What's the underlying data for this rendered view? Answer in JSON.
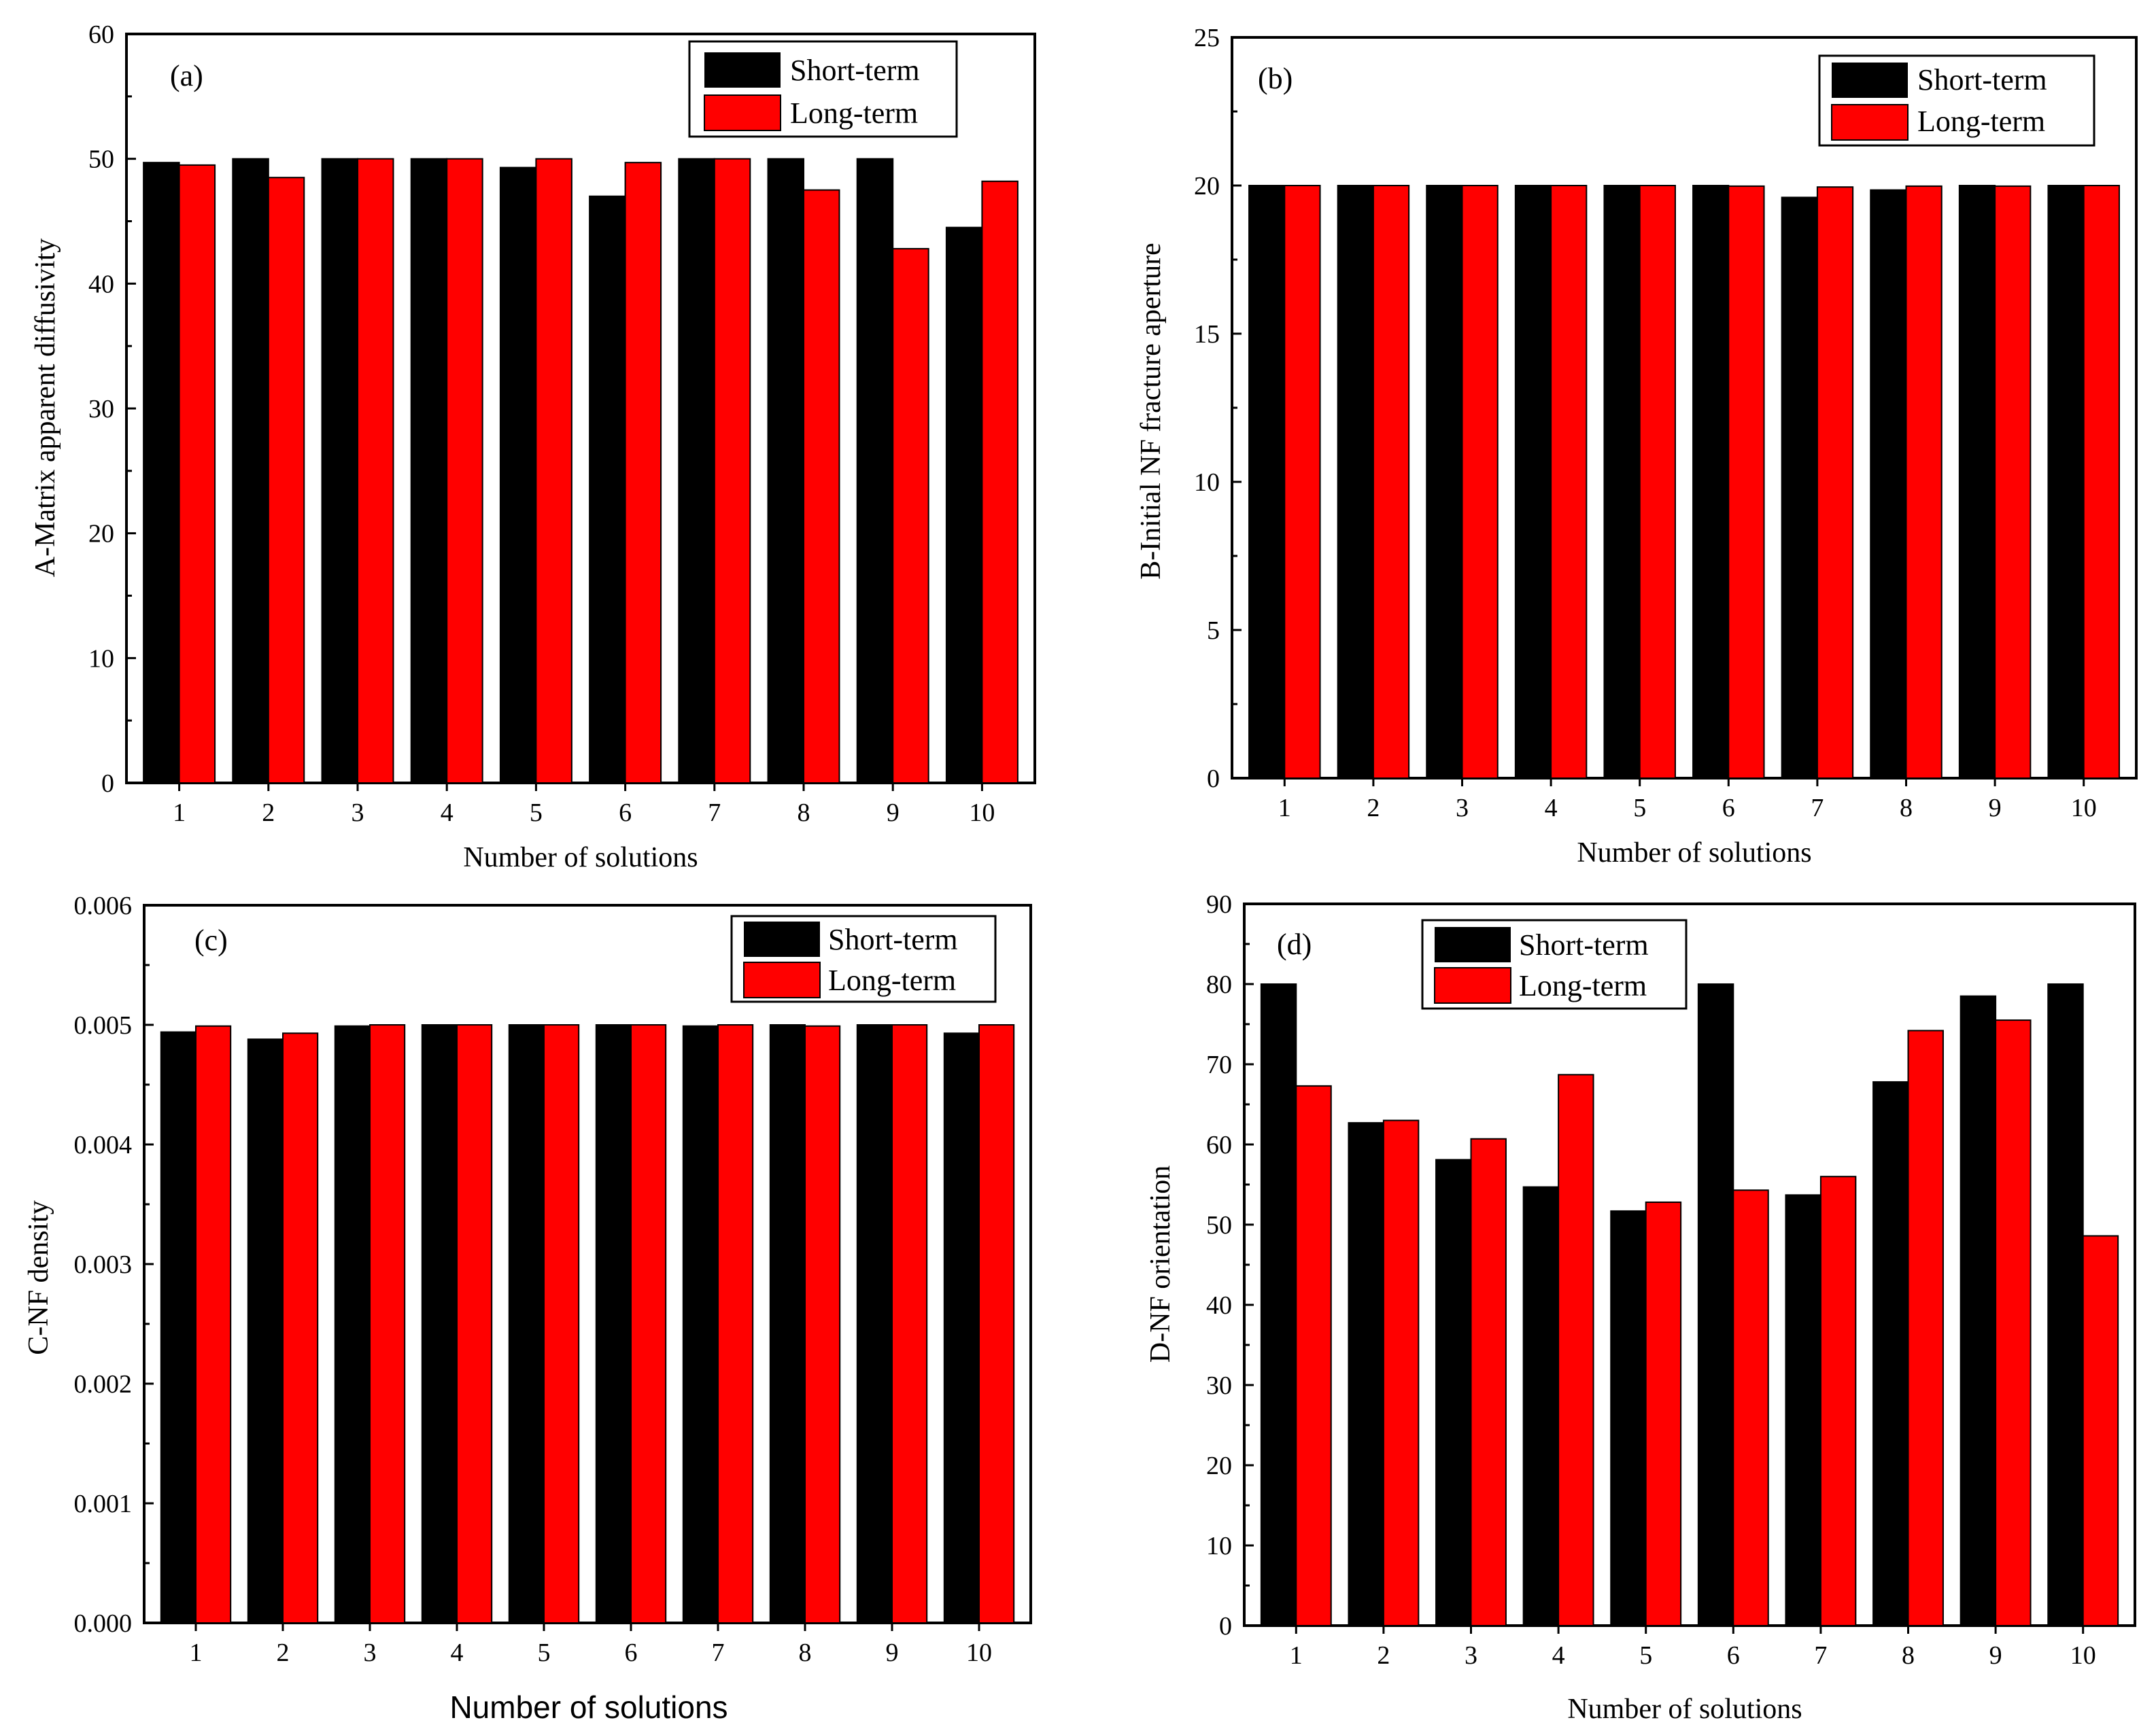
{
  "colors": {
    "short_term": "#000000",
    "long_term": "#ff0000",
    "frame": "#000000"
  },
  "chart_data": [
    {
      "type": "bar",
      "panel_label": "(a)",
      "categories": [
        "1",
        "2",
        "3",
        "4",
        "5",
        "6",
        "7",
        "8",
        "9",
        "10"
      ],
      "series": [
        {
          "name": "Short-term",
          "values": [
            49.7,
            50.0,
            50.0,
            50.0,
            49.3,
            47.0,
            50.0,
            50.0,
            50.0,
            44.5
          ]
        },
        {
          "name": "Long-term",
          "values": [
            49.5,
            48.5,
            50.0,
            50.0,
            50.0,
            49.7,
            50.0,
            47.5,
            42.8,
            48.2
          ]
        }
      ],
      "xlabel": "Number of solutions",
      "ylabel": "A-Matrix apparent diffusivity",
      "ylim": [
        0,
        60
      ],
      "yticks": [
        "0",
        "10",
        "20",
        "30",
        "40",
        "50",
        "60"
      ],
      "legend": {
        "position": "top-right",
        "entries": [
          "Short-term",
          "Long-term"
        ]
      }
    },
    {
      "type": "bar",
      "panel_label": "(b)",
      "categories": [
        "1",
        "2",
        "3",
        "4",
        "5",
        "6",
        "7",
        "8",
        "9",
        "10"
      ],
      "series": [
        {
          "name": "Short-term",
          "values": [
            20.0,
            20.0,
            20.0,
            20.0,
            20.0,
            20.0,
            19.6,
            19.85,
            20.0,
            20.0
          ]
        },
        {
          "name": "Long-term",
          "values": [
            20.0,
            20.0,
            20.0,
            20.0,
            20.0,
            19.98,
            19.95,
            19.98,
            19.98,
            20.0
          ]
        }
      ],
      "xlabel": "Number of solutions",
      "ylabel": "B-Initial NF fracture aperture",
      "ylim": [
        0,
        25
      ],
      "yticks": [
        "0",
        "5",
        "10",
        "15",
        "20",
        "25"
      ],
      "legend": {
        "position": "top-right",
        "entries": [
          "Short-term",
          "Long-term"
        ]
      }
    },
    {
      "type": "bar",
      "panel_label": "(c)",
      "categories": [
        "1",
        "2",
        "3",
        "4",
        "5",
        "6",
        "7",
        "8",
        "9",
        "10"
      ],
      "series": [
        {
          "name": "Short-term",
          "values": [
            0.00494,
            0.00488,
            0.00499,
            0.005,
            0.005,
            0.005,
            0.00499,
            0.005,
            0.005,
            0.00493
          ]
        },
        {
          "name": "Long-term",
          "values": [
            0.00499,
            0.00493,
            0.005,
            0.005,
            0.005,
            0.005,
            0.005,
            0.00499,
            0.005,
            0.005
          ]
        }
      ],
      "xlabel": "Number of solutions",
      "ylabel": "C-NF density",
      "ylim": [
        0,
        0.006
      ],
      "yticks": [
        "0.000",
        "0.001",
        "0.002",
        "0.003",
        "0.004",
        "0.005",
        "0.006"
      ],
      "legend": {
        "position": "top-right",
        "entries": [
          "Short-term",
          "Long-term"
        ]
      }
    },
    {
      "type": "bar",
      "panel_label": "(d)",
      "categories": [
        "1",
        "2",
        "3",
        "4",
        "5",
        "6",
        "7",
        "8",
        "9",
        "10"
      ],
      "series": [
        {
          "name": "Short-term",
          "values": [
            80.0,
            62.7,
            58.1,
            54.7,
            51.7,
            80.0,
            53.7,
            67.8,
            78.5,
            80.0
          ]
        },
        {
          "name": "Long-term",
          "values": [
            67.3,
            63.0,
            60.7,
            68.7,
            52.8,
            54.3,
            56.0,
            74.2,
            75.5,
            48.6
          ]
        }
      ],
      "xlabel": "Number of solutions",
      "ylabel": "D-NF orientation",
      "ylim": [
        0,
        90
      ],
      "yticks": [
        "0",
        "10",
        "20",
        "30",
        "40",
        "50",
        "60",
        "70",
        "80",
        "90"
      ],
      "legend": {
        "position": "top-left",
        "entries": [
          "Short-term",
          "Long-term"
        ]
      }
    }
  ]
}
